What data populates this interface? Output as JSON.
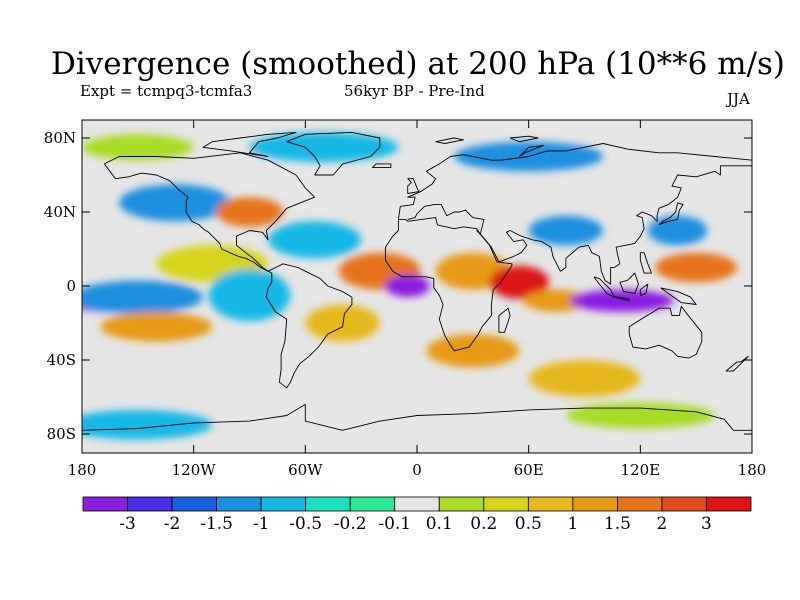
{
  "title": "Divergence (smoothed) at 200 hPa (10**6 m/s)",
  "experiment": "Expt = tcmpq3-tcmfa3",
  "period": "56kyr BP - Pre-Ind",
  "season": "JJA",
  "lat_ticks": [
    "80N",
    "40N",
    "0",
    "40S",
    "80S"
  ],
  "lon_ticks": [
    "180",
    "120W",
    "60W",
    "0",
    "60E",
    "120E",
    "180"
  ],
  "colors": {
    "background_field": "#e6e6e6",
    "coastline": "#000000",
    "contour_fill": [
      "#8a1ee0",
      "#4b2ee6",
      "#1b5fe0",
      "#1b8fe0",
      "#18b8e6",
      "#1ee0c0",
      "#2ee896",
      "#e6e6e6",
      "#a8dc28",
      "#d4d41e",
      "#e6b81e",
      "#e69a14",
      "#e6731e",
      "#e04b1e",
      "#dc1414"
    ]
  },
  "colorbar": {
    "boundaries": [
      "-3",
      "-2",
      "-1.5",
      "-1",
      "-0.5",
      "-0.2",
      "-0.1",
      "0.1",
      "0.2",
      "0.5",
      "1",
      "1.5",
      "2",
      "3"
    ]
  },
  "field_blobs": [
    {
      "lon": -165,
      "lat": -8,
      "rlon": 25,
      "rlat": 6,
      "level": 0
    },
    {
      "lon": -150,
      "lat": -6,
      "rlon": 35,
      "rlat": 9,
      "level": 3
    },
    {
      "lon": -140,
      "lat": -22,
      "rlon": 30,
      "rlat": 8,
      "level": 11
    },
    {
      "lon": -110,
      "lat": 12,
      "rlon": 30,
      "rlat": 10,
      "level": 9
    },
    {
      "lon": -90,
      "lat": -5,
      "rlon": 22,
      "rlat": 14,
      "level": 4
    },
    {
      "lon": -130,
      "lat": 45,
      "rlon": 30,
      "rlat": 10,
      "level": 3
    },
    {
      "lon": -90,
      "lat": 40,
      "rlon": 18,
      "rlat": 8,
      "level": 12
    },
    {
      "lon": -55,
      "lat": 25,
      "rlon": 25,
      "rlat": 10,
      "level": 4
    },
    {
      "lon": -20,
      "lat": 8,
      "rlon": 22,
      "rlat": 10,
      "level": 12
    },
    {
      "lon": -5,
      "lat": 0,
      "rlon": 12,
      "rlat": 6,
      "level": 0
    },
    {
      "lon": -40,
      "lat": -20,
      "rlon": 20,
      "rlat": 10,
      "level": 10
    },
    {
      "lon": 30,
      "lat": 8,
      "rlon": 20,
      "rlat": 10,
      "level": 11
    },
    {
      "lon": 55,
      "lat": 2,
      "rlon": 16,
      "rlat": 9,
      "level": 14
    },
    {
      "lon": 80,
      "lat": 30,
      "rlon": 20,
      "rlat": 8,
      "level": 3
    },
    {
      "lon": 75,
      "lat": -8,
      "rlon": 18,
      "rlat": 6,
      "level": 11
    },
    {
      "lon": 110,
      "lat": -8,
      "rlon": 28,
      "rlat": 6,
      "level": 0
    },
    {
      "lon": 150,
      "lat": 10,
      "rlon": 22,
      "rlat": 8,
      "level": 12
    },
    {
      "lon": 140,
      "lat": 30,
      "rlon": 16,
      "rlat": 8,
      "level": 3
    },
    {
      "lon": 30,
      "lat": -35,
      "rlon": 25,
      "rlat": 9,
      "level": 11
    },
    {
      "lon": 90,
      "lat": -50,
      "rlon": 30,
      "rlat": 10,
      "level": 10
    },
    {
      "lon": -50,
      "lat": 75,
      "rlon": 40,
      "rlat": 8,
      "level": 4
    },
    {
      "lon": 60,
      "lat": 70,
      "rlon": 40,
      "rlat": 8,
      "level": 3
    },
    {
      "lon": -150,
      "lat": 75,
      "rlon": 30,
      "rlat": 7,
      "level": 8
    },
    {
      "lon": -150,
      "lat": -75,
      "rlon": 40,
      "rlat": 8,
      "level": 4
    },
    {
      "lon": 120,
      "lat": -70,
      "rlon": 40,
      "rlat": 7,
      "level": 8
    }
  ],
  "coastlines": [
    [
      [
        -168,
        66
      ],
      [
        -160,
        70
      ],
      [
        -140,
        70
      ],
      [
        -120,
        69
      ],
      [
        -95,
        72
      ],
      [
        -80,
        68
      ],
      [
        -65,
        60
      ],
      [
        -60,
        53
      ],
      [
        -55,
        48
      ],
      [
        -65,
        44
      ],
      [
        -70,
        42
      ],
      [
        -76,
        35
      ],
      [
        -81,
        30
      ],
      [
        -80,
        25
      ],
      [
        -83,
        29
      ],
      [
        -90,
        30
      ],
      [
        -97,
        27
      ],
      [
        -97,
        22
      ],
      [
        -92,
        18
      ],
      [
        -88,
        15
      ],
      [
        -83,
        10
      ],
      [
        -80,
        8
      ],
      [
        -78,
        9
      ],
      [
        -76,
        10
      ],
      [
        -72,
        12
      ],
      [
        -64,
        10
      ],
      [
        -60,
        8
      ],
      [
        -52,
        4
      ],
      [
        -48,
        0
      ],
      [
        -40,
        -3
      ],
      [
        -35,
        -6
      ],
      [
        -35,
        -10
      ],
      [
        -39,
        -15
      ],
      [
        -40,
        -22
      ],
      [
        -48,
        -26
      ],
      [
        -53,
        -33
      ],
      [
        -58,
        -38
      ],
      [
        -63,
        -42
      ],
      [
        -66,
        -47
      ],
      [
        -68,
        -52
      ],
      [
        -70,
        -55
      ],
      [
        -74,
        -52
      ],
      [
        -73,
        -45
      ],
      [
        -73,
        -37
      ],
      [
        -71,
        -30
      ],
      [
        -70,
        -18
      ],
      [
        -76,
        -14
      ],
      [
        -81,
        -6
      ],
      [
        -80,
        -1
      ],
      [
        -78,
        2
      ],
      [
        -78,
        7
      ],
      [
        -84,
        10
      ],
      [
        -88,
        13
      ],
      [
        -92,
        15
      ],
      [
        -96,
        16
      ],
      [
        -105,
        20
      ],
      [
        -106,
        23
      ],
      [
        -112,
        29
      ],
      [
        -115,
        31
      ],
      [
        -117,
        33
      ],
      [
        -121,
        35
      ],
      [
        -124,
        40
      ],
      [
        -124,
        46
      ],
      [
        -123,
        48
      ],
      [
        -128,
        52
      ],
      [
        -133,
        57
      ],
      [
        -140,
        60
      ],
      [
        -148,
        61
      ],
      [
        -155,
        59
      ],
      [
        -162,
        58
      ],
      [
        -165,
        62
      ],
      [
        -168,
        66
      ]
    ],
    [
      [
        -55,
        60
      ],
      [
        -45,
        60
      ],
      [
        -40,
        66
      ],
      [
        -25,
        70
      ],
      [
        -20,
        75
      ],
      [
        -20,
        80
      ],
      [
        -35,
        83
      ],
      [
        -60,
        82
      ],
      [
        -70,
        78
      ],
      [
        -60,
        75
      ],
      [
        -55,
        70
      ],
      [
        -52,
        65
      ],
      [
        -55,
        60
      ]
    ],
    [
      [
        -10,
        36
      ],
      [
        -9,
        43
      ],
      [
        -2,
        44
      ],
      [
        -1,
        48
      ],
      [
        -5,
        48
      ],
      [
        2,
        51
      ],
      [
        5,
        53
      ],
      [
        8,
        55
      ],
      [
        10,
        58
      ],
      [
        5,
        62
      ],
      [
        12,
        66
      ],
      [
        18,
        70
      ],
      [
        25,
        71
      ],
      [
        40,
        68
      ],
      [
        45,
        68
      ],
      [
        60,
        70
      ],
      [
        70,
        73
      ],
      [
        80,
        73
      ],
      [
        100,
        77
      ],
      [
        113,
        74
      ],
      [
        130,
        72
      ],
      [
        140,
        72
      ],
      [
        160,
        70
      ],
      [
        170,
        69
      ],
      [
        180,
        68
      ]
    ],
    [
      [
        -10,
        36
      ],
      [
        -6,
        36
      ],
      [
        -5,
        35
      ],
      [
        10,
        37
      ],
      [
        11,
        33
      ],
      [
        20,
        31
      ],
      [
        25,
        32
      ],
      [
        32,
        31
      ],
      [
        34,
        28
      ],
      [
        39,
        22
      ],
      [
        43,
        13
      ],
      [
        51,
        12
      ],
      [
        51,
        11
      ],
      [
        45,
        2
      ],
      [
        41,
        -2
      ],
      [
        40,
        -10
      ],
      [
        40,
        -16
      ],
      [
        35,
        -22
      ],
      [
        33,
        -26
      ],
      [
        28,
        -33
      ],
      [
        20,
        -35
      ],
      [
        18,
        -32
      ],
      [
        15,
        -27
      ],
      [
        12,
        -18
      ],
      [
        14,
        -10
      ],
      [
        12,
        -5
      ],
      [
        9,
        -1
      ],
      [
        9,
        4
      ],
      [
        5,
        5
      ],
      [
        -2,
        5
      ],
      [
        -8,
        5
      ],
      [
        -13,
        8
      ],
      [
        -17,
        14
      ],
      [
        -17,
        21
      ],
      [
        -13,
        27
      ],
      [
        -10,
        30
      ],
      [
        -10,
        36
      ]
    ],
    [
      [
        34,
        28
      ],
      [
        35,
        32
      ],
      [
        36,
        36
      ],
      [
        30,
        37
      ],
      [
        27,
        40
      ],
      [
        26,
        41
      ],
      [
        23,
        40
      ],
      [
        20,
        40
      ],
      [
        16,
        38
      ],
      [
        13,
        44
      ],
      [
        9,
        44
      ],
      [
        4,
        43
      ],
      [
        0,
        39
      ],
      [
        -1,
        37
      ],
      [
        -5,
        36
      ]
    ],
    [
      [
        32,
        30
      ],
      [
        35,
        27
      ],
      [
        40,
        21
      ],
      [
        44,
        13
      ],
      [
        52,
        16
      ],
      [
        56,
        18
      ],
      [
        59,
        22
      ],
      [
        57,
        25
      ],
      [
        52,
        24
      ],
      [
        48,
        29
      ],
      [
        50,
        30
      ],
      [
        56,
        27
      ],
      [
        62,
        25
      ],
      [
        67,
        24
      ],
      [
        72,
        21
      ],
      [
        73,
        16
      ],
      [
        77,
        8
      ],
      [
        80,
        10
      ],
      [
        80,
        15
      ],
      [
        87,
        21
      ],
      [
        92,
        22
      ],
      [
        94,
        18
      ],
      [
        98,
        16
      ],
      [
        99,
        8
      ],
      [
        101,
        3
      ],
      [
        104,
        1
      ],
      [
        104,
        10
      ],
      [
        106,
        10
      ],
      [
        109,
        12
      ],
      [
        108,
        16
      ],
      [
        107,
        21
      ],
      [
        112,
        22
      ],
      [
        117,
        23
      ],
      [
        120,
        27
      ],
      [
        122,
        31
      ],
      [
        121,
        37
      ],
      [
        118,
        38
      ],
      [
        121,
        40
      ],
      [
        126,
        38
      ],
      [
        129,
        35
      ],
      [
        129,
        38
      ],
      [
        130,
        42
      ],
      [
        135,
        44
      ],
      [
        140,
        48
      ],
      [
        142,
        53
      ],
      [
        137,
        54
      ],
      [
        140,
        60
      ],
      [
        150,
        59
      ],
      [
        160,
        62
      ],
      [
        163,
        60
      ],
      [
        163,
        65
      ],
      [
        180,
        65
      ]
    ],
    [
      [
        114,
        -22
      ],
      [
        114,
        -26
      ],
      [
        116,
        -33
      ],
      [
        123,
        -34
      ],
      [
        130,
        -32
      ],
      [
        137,
        -35
      ],
      [
        140,
        -38
      ],
      [
        146,
        -39
      ],
      [
        150,
        -37
      ],
      [
        153,
        -30
      ],
      [
        153,
        -25
      ],
      [
        145,
        -15
      ],
      [
        142,
        -11
      ],
      [
        141,
        -16
      ],
      [
        137,
        -16
      ],
      [
        136,
        -12
      ],
      [
        130,
        -12
      ],
      [
        127,
        -14
      ],
      [
        122,
        -17
      ],
      [
        114,
        -22
      ]
    ],
    [
      [
        95,
        5
      ],
      [
        98,
        4
      ],
      [
        104,
        -2
      ],
      [
        106,
        -6
      ],
      [
        102,
        -4
      ],
      [
        98,
        1
      ],
      [
        95,
        5
      ]
    ],
    [
      [
        106,
        -6
      ],
      [
        114,
        -8
      ],
      [
        114,
        -7
      ],
      [
        108,
        -6
      ],
      [
        106,
        -6
      ]
    ],
    [
      [
        109,
        2
      ],
      [
        111,
        -3
      ],
      [
        117,
        -4
      ],
      [
        119,
        1
      ],
      [
        117,
        7
      ],
      [
        113,
        3
      ],
      [
        109,
        2
      ]
    ],
    [
      [
        120,
        -2
      ],
      [
        124,
        1
      ],
      [
        123,
        -4
      ],
      [
        120,
        -5
      ],
      [
        120,
        -2
      ]
    ],
    [
      [
        131,
        -1
      ],
      [
        140,
        -3
      ],
      [
        147,
        -6
      ],
      [
        150,
        -10
      ],
      [
        142,
        -9
      ],
      [
        135,
        -4
      ],
      [
        131,
        -1
      ]
    ],
    [
      [
        130,
        33
      ],
      [
        132,
        34
      ],
      [
        135,
        35
      ],
      [
        140,
        36
      ],
      [
        141,
        41
      ],
      [
        143,
        44
      ],
      [
        140,
        45
      ],
      [
        139,
        40
      ],
      [
        136,
        37
      ],
      [
        132,
        35
      ],
      [
        130,
        33
      ]
    ],
    [
      [
        120,
        18
      ],
      [
        122,
        18
      ],
      [
        124,
        12
      ],
      [
        126,
        7
      ],
      [
        122,
        7
      ],
      [
        120,
        14
      ],
      [
        120,
        18
      ]
    ],
    [
      [
        44,
        -25
      ],
      [
        47,
        -25
      ],
      [
        50,
        -16
      ],
      [
        49,
        -12
      ],
      [
        44,
        -16
      ],
      [
        44,
        -25
      ]
    ],
    [
      [
        -5,
        50
      ],
      [
        -5,
        54
      ],
      [
        -3,
        56
      ],
      [
        -5,
        58
      ],
      [
        -2,
        58
      ],
      [
        0,
        53
      ],
      [
        1,
        51
      ],
      [
        -5,
        50
      ]
    ],
    [
      [
        166,
        -46
      ],
      [
        172,
        -41
      ],
      [
        174,
        -41
      ],
      [
        178,
        -38
      ],
      [
        176,
        -40
      ],
      [
        170,
        -46
      ],
      [
        166,
        -46
      ]
    ],
    [
      [
        -24,
        64
      ],
      [
        -22,
        66
      ],
      [
        -14,
        66
      ],
      [
        -14,
        64
      ],
      [
        -24,
        64
      ]
    ],
    [
      [
        -180,
        -78
      ],
      [
        -150,
        -77
      ],
      [
        -120,
        -74
      ],
      [
        -90,
        -73
      ],
      [
        -70,
        -70
      ],
      [
        -60,
        -64
      ],
      [
        -60,
        -73
      ],
      [
        -40,
        -78
      ],
      [
        -20,
        -73
      ],
      [
        0,
        -70
      ],
      [
        30,
        -69
      ],
      [
        60,
        -67
      ],
      [
        90,
        -66
      ],
      [
        120,
        -66
      ],
      [
        150,
        -68
      ],
      [
        165,
        -72
      ],
      [
        170,
        -78
      ],
      [
        180,
        -78
      ]
    ],
    [
      [
        -80,
        70
      ],
      [
        -90,
        72
      ],
      [
        -85,
        78
      ],
      [
        -75,
        80
      ],
      [
        -65,
        83
      ],
      [
        -80,
        82
      ],
      [
        -95,
        80
      ],
      [
        -110,
        78
      ],
      [
        -115,
        75
      ],
      [
        -100,
        73
      ],
      [
        -80,
        70
      ]
    ],
    [
      [
        50,
        80
      ],
      [
        60,
        81
      ],
      [
        65,
        80
      ],
      [
        55,
        78
      ],
      [
        50,
        80
      ]
    ],
    [
      [
        10,
        78
      ],
      [
        20,
        80
      ],
      [
        25,
        79
      ],
      [
        15,
        77
      ],
      [
        10,
        78
      ]
    ],
    [
      [
        55,
        70
      ],
      [
        60,
        75
      ],
      [
        68,
        76
      ],
      [
        58,
        72
      ],
      [
        55,
        70
      ]
    ]
  ]
}
